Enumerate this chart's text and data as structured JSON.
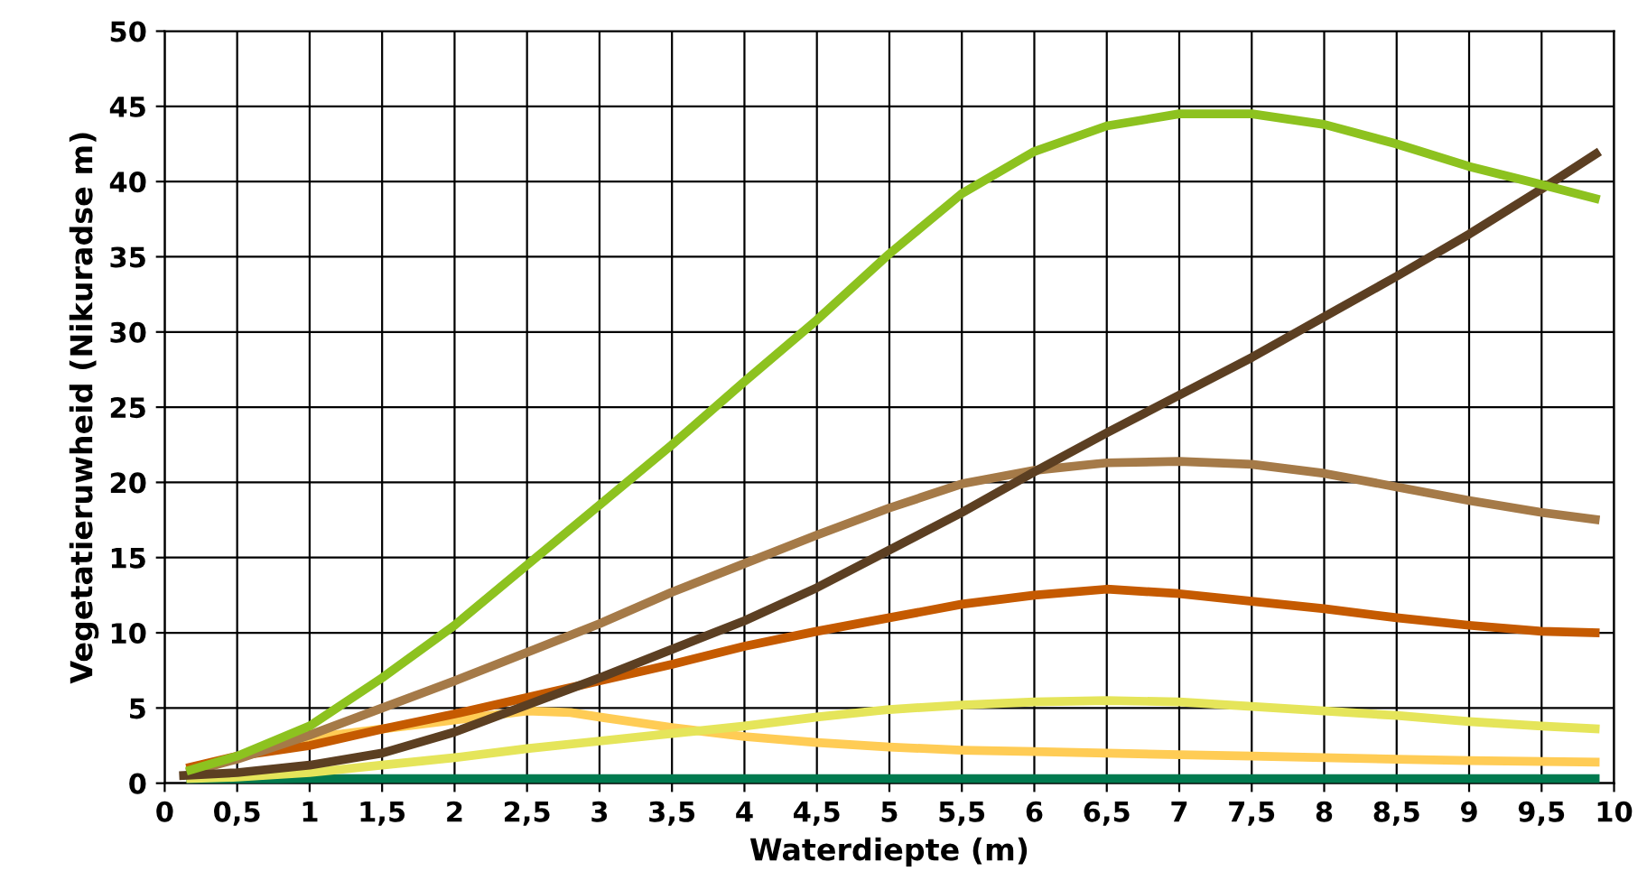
{
  "chart_data": {
    "type": "line",
    "xlabel": "Waterdiepte (m)",
    "ylabel": "Vegetatieruwheid (Nikuradse m)",
    "xlim": [
      0,
      10
    ],
    "ylim": [
      0,
      50
    ],
    "xticks": [
      0,
      {
        "value": 0.5,
        "label": "0,5"
      },
      1,
      {
        "value": 1.5,
        "label": "1,5"
      },
      2,
      {
        "value": 2.5,
        "label": "2,5"
      },
      3,
      {
        "value": 3.5,
        "label": "3,5"
      },
      4,
      {
        "value": 4.5,
        "label": "4,5"
      },
      5,
      {
        "value": 5.5,
        "label": "5,5"
      },
      6,
      {
        "value": 6.5,
        "label": "6,5"
      },
      7,
      {
        "value": 7.5,
        "label": "7,5"
      },
      8,
      {
        "value": 8.5,
        "label": "8,5"
      },
      9,
      {
        "value": 9.5,
        "label": "9,5"
      },
      10
    ],
    "yticks": [
      0,
      5,
      10,
      15,
      20,
      25,
      30,
      35,
      40,
      45,
      50
    ],
    "grid": true,
    "legend": false,
    "marker": "none",
    "line_style": "solid",
    "series": [
      {
        "color": "#007a4f",
        "x": [
          0.15,
          1,
          3,
          5,
          7,
          9,
          9.9
        ],
        "values": [
          0.2,
          0.3,
          0.3,
          0.3,
          0.3,
          0.3,
          0.3
        ]
      },
      {
        "color": "#ffcc55",
        "x": [
          0.15,
          0.5,
          1,
          1.5,
          2,
          2.5,
          2.8,
          3,
          3.5,
          4,
          4.5,
          5,
          5.5,
          6,
          6.5,
          7,
          7.5,
          8,
          8.5,
          9,
          9.9
        ],
        "values": [
          0.5,
          1.8,
          3,
          3.6,
          4.2,
          4.8,
          4.7,
          4.4,
          3.7,
          3.1,
          2.7,
          2.4,
          2.2,
          2.1,
          2,
          1.9,
          1.8,
          1.7,
          1.6,
          1.5,
          1.4
        ]
      },
      {
        "color": "#e5e55a",
        "x": [
          0.15,
          0.5,
          1,
          1.5,
          2,
          2.5,
          3,
          3.5,
          4,
          4.5,
          5,
          5.5,
          6,
          6.5,
          7,
          7.5,
          8,
          8.5,
          9,
          9.5,
          9.9
        ],
        "values": [
          0.3,
          0.4,
          0.7,
          1.2,
          1.7,
          2.3,
          2.8,
          3.3,
          3.8,
          4.4,
          4.9,
          5.2,
          5.4,
          5.5,
          5.4,
          5.1,
          4.8,
          4.5,
          4.1,
          3.8,
          3.6
        ]
      },
      {
        "color": "#c55a00",
        "x": [
          0.15,
          0.5,
          1,
          1.5,
          2,
          2.5,
          3,
          3.5,
          4,
          4.5,
          5,
          5.5,
          6,
          6.5,
          7,
          7.5,
          8,
          8.5,
          9,
          9.5,
          9.9
        ],
        "values": [
          1,
          1.8,
          2.5,
          3.6,
          4.6,
          5.7,
          6.8,
          7.9,
          9.1,
          10.1,
          11,
          11.9,
          12.5,
          12.9,
          12.6,
          12.1,
          11.6,
          11,
          10.5,
          10.1,
          10
        ]
      },
      {
        "color": "#a57a48",
        "x": [
          0.15,
          0.5,
          1,
          1.5,
          2,
          2.5,
          3,
          3.5,
          4,
          4.5,
          5,
          5.5,
          6,
          6.5,
          7,
          7.5,
          8,
          8.5,
          9,
          9.5,
          9.9
        ],
        "values": [
          0.7,
          1.6,
          3.2,
          5,
          6.8,
          8.7,
          10.6,
          12.7,
          14.6,
          16.5,
          18.3,
          19.9,
          20.8,
          21.3,
          21.4,
          21.2,
          20.6,
          19.7,
          18.8,
          18,
          17.5
        ]
      },
      {
        "color": "#5c3f22",
        "x": [
          0.1,
          0.5,
          1,
          1.5,
          2,
          2.5,
          3,
          3.5,
          4,
          4.5,
          5,
          5.5,
          6,
          6.5,
          7,
          7.5,
          8,
          8.5,
          9,
          9.5,
          9.9
        ],
        "values": [
          0.5,
          0.7,
          1.2,
          2,
          3.4,
          5.2,
          7,
          8.9,
          10.8,
          13,
          15.5,
          18,
          20.7,
          23.3,
          25.8,
          28.3,
          31,
          33.7,
          36.5,
          39.5,
          42
        ]
      },
      {
        "color": "#8dc21f",
        "x": [
          0.15,
          0.5,
          1,
          1.5,
          2,
          2.5,
          3,
          3.5,
          4,
          4.5,
          5,
          5.5,
          6,
          6.5,
          7,
          7.5,
          8,
          8.5,
          9,
          9.5,
          9.9
        ],
        "values": [
          0.8,
          1.8,
          3.8,
          7,
          10.5,
          14.5,
          18.5,
          22.5,
          26.7,
          30.8,
          35.2,
          39.2,
          42,
          43.7,
          44.5,
          44.5,
          43.8,
          42.5,
          41,
          39.8,
          38.8
        ]
      }
    ]
  }
}
